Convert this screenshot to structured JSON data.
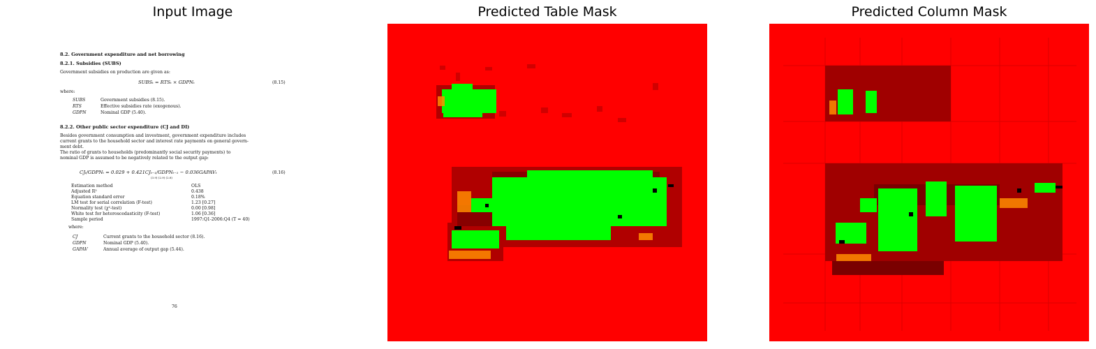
{
  "panels": {
    "input_title": "Input Image",
    "table_title": "Predicted Table Mask",
    "column_title": "Predicted Column Mask"
  },
  "doc": {
    "h1": "8.2. Government expenditure and net borrowing",
    "h2": "8.2.1. Subsidies (SUBS)",
    "p1": "Government subsidies on production are given as:",
    "eq1": "SUBSₜ = RTSₜ × GDPNₜ",
    "eq1_num": "(8.15)",
    "where1": "where:",
    "defs1": [
      {
        "sym": "SUBS",
        "desc": "Government subsidies (8.15)."
      },
      {
        "sym": "RTS",
        "desc": "Effective subsidies rate (exogenous)."
      },
      {
        "sym": "GDPN",
        "desc": "Nominal GDP (5.40)."
      }
    ],
    "h3": "8.2.2. Other public sector expenditure (CJ and DI)",
    "para2": [
      "Besides government consumption and investment, government expenditure includes",
      "current grants to the household sector and interest rate payments on general govern-",
      "ment debt.",
      "   The ratio of grants to households (predominantly social security payments) to",
      "nominal GDP is assumed to be negatively related to the output gap:"
    ],
    "eq2": "CJₜ/GDPNₜ = 0.029 + 0.421CJₜ₋₁/GDPNₜ₋₁ − 0.036GAPAVₜ",
    "eq2_se": "(3.9)          (2.9)                              (2.8)",
    "eq2_num": "(8.16)",
    "stats": [
      {
        "label": "Estimation method",
        "value": "OLS"
      },
      {
        "label": "Adjusted R²",
        "value": "0.438"
      },
      {
        "label": "Equation standard error",
        "value": "0.18%"
      },
      {
        "label": "LM test for serial correlation (F-test)",
        "value": "1.23 [0.27]"
      },
      {
        "label": "Normality test (χ²-test)",
        "value": "0.00 [0.98]"
      },
      {
        "label": "White test for heteroscedasticity (F-test)",
        "value": "1.06 [0.36]"
      },
      {
        "label": "Sample period",
        "value": "1997:Q1-2006:Q4 (T = 40)"
      }
    ],
    "where2": "where:",
    "defs2": [
      {
        "sym": "CJ",
        "desc": "Current grants to the household sector (8.16)."
      },
      {
        "sym": "GDPN",
        "desc": "Nominal GDP (5.40)."
      },
      {
        "sym": "GAPAV",
        "desc": "Annual average of output gap (5.44)."
      }
    ],
    "page_number": "76"
  },
  "colors": {
    "background": "#ff0000",
    "prediction": "#00ff00",
    "uncertain": "#cc0000"
  }
}
